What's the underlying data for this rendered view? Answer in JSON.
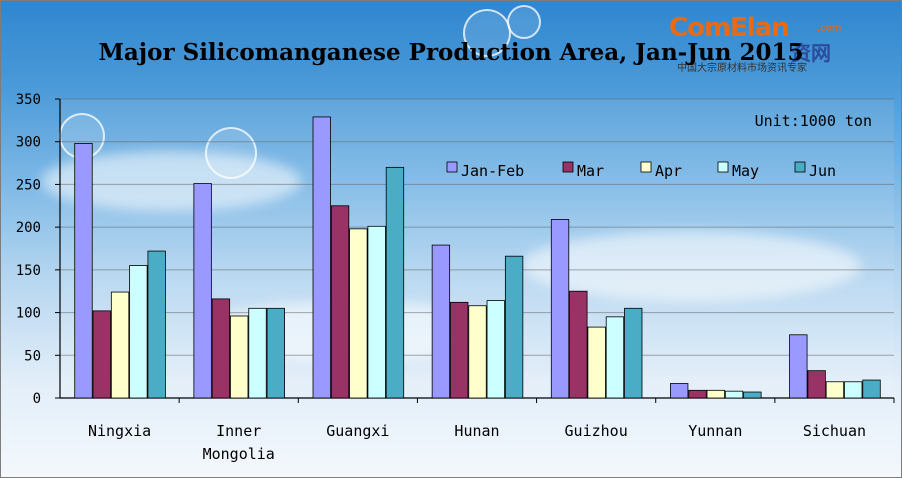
{
  "logo": {
    "main": "ComElan",
    "chinese": "资网",
    "domain": ".com",
    "subtitle": "中国大宗原材料市场资讯专家"
  },
  "chart_data": {
    "type": "bar",
    "title": "Major Silicomanganese Production Area, Jan-Jun 2015",
    "unit_label": "Unit:1000 ton",
    "categories": [
      "Ningxia",
      "Inner Mongolia",
      "Guangxi",
      "Hunan",
      "Guizhou",
      "Yunnan",
      "Sichuan"
    ],
    "category_lines": [
      [
        "Ningxia"
      ],
      [
        "Inner",
        "Mongolia"
      ],
      [
        "Guangxi"
      ],
      [
        "Hunan"
      ],
      [
        "Guizhou"
      ],
      [
        "Yunnan"
      ],
      [
        "Sichuan"
      ]
    ],
    "series": [
      {
        "name": "Jan-Feb",
        "color": "#9999ff",
        "values": [
          298,
          251,
          329,
          179,
          209,
          17,
          74
        ]
      },
      {
        "name": "Mar",
        "color": "#993366",
        "values": [
          102,
          116,
          225,
          112,
          125,
          9,
          32
        ]
      },
      {
        "name": "Apr",
        "color": "#ffffcc",
        "values": [
          124,
          96,
          198,
          108,
          83,
          9,
          19
        ]
      },
      {
        "name": "May",
        "color": "#ccffff",
        "values": [
          155,
          105,
          201,
          114,
          95,
          8,
          19
        ]
      },
      {
        "name": "Jun",
        "color": "#4bacc6",
        "values": [
          172,
          105,
          270,
          166,
          105,
          7,
          21
        ]
      }
    ],
    "yticks": [
      0,
      50,
      100,
      150,
      200,
      250,
      300,
      350
    ],
    "ylim": [
      0,
      350
    ],
    "grid": true,
    "legend_position": "top-right"
  }
}
